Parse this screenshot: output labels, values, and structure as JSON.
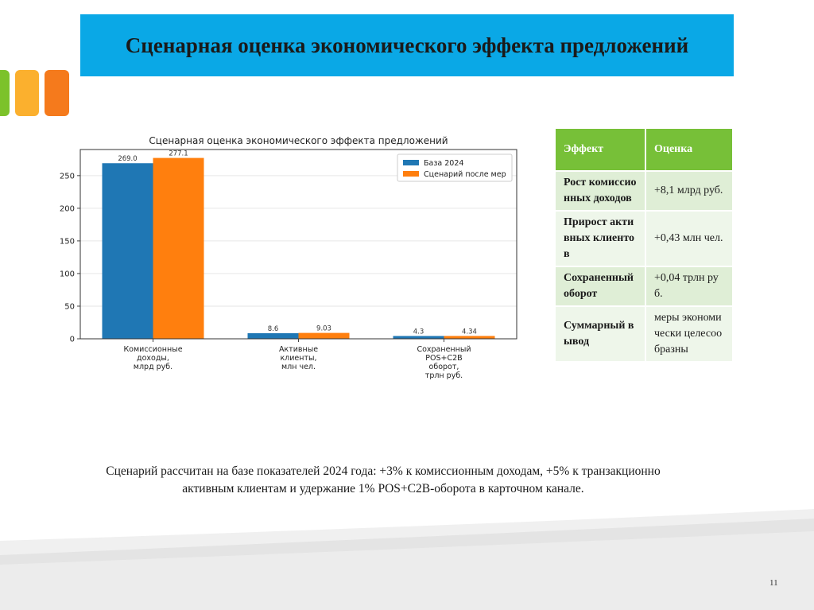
{
  "slide": {
    "title": "Сценарная оценка экономического эффекта предложений",
    "note": "Сценарий рассчитан на базе показателей 2024 года: +3% к комиссионным доходам, +5% к транзакционно активным клиентам и удержание 1% POS+C2B-оборота в карточном канале.",
    "page_number": "11",
    "colors": {
      "title_bar": "#0aa8e6",
      "deco_green": "#7cc22a",
      "deco_yellow": "#fbb02e",
      "deco_orange": "#f57a1c",
      "table_header": "#77c038"
    }
  },
  "chart_data": {
    "type": "bar",
    "title": "Сценарная оценка экономического эффекта предложений",
    "categories": [
      [
        "Комиссионные",
        "доходы,",
        "млрд руб."
      ],
      [
        "Активные",
        "клиенты,",
        "млн чел."
      ],
      [
        "Сохраненный",
        "POS+C2B",
        "оборот,",
        "трлн руб."
      ]
    ],
    "series": [
      {
        "name": "База 2024",
        "values": [
          269.0,
          8.6,
          4.3
        ],
        "labels": [
          "269.0",
          "8.6",
          "4.3"
        ],
        "color": "#1f77b4"
      },
      {
        "name": "Сценарий после мер",
        "values": [
          277.1,
          9.03,
          4.34
        ],
        "labels": [
          "277.1",
          "9.03",
          "4.34"
        ],
        "color": "#ff7f0e"
      }
    ],
    "yticks": [
      0,
      50,
      100,
      150,
      200,
      250
    ],
    "ylim": [
      0,
      290
    ],
    "grid": "horizontal",
    "legend": "top-right"
  },
  "table": {
    "headers": [
      "Эффект",
      "Оценка"
    ],
    "rows": [
      [
        "Рост комиссионных доходов",
        "+8,1 млрд руб."
      ],
      [
        "Прирост активных клиентов",
        "+0,43 млн чел."
      ],
      [
        "Сохраненный оборот",
        "+0,04 трлн руб."
      ],
      [
        "Суммарный вывод",
        "меры экономически целесообразны"
      ]
    ]
  }
}
